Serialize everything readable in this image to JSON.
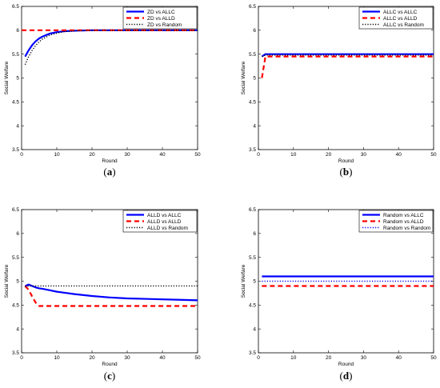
{
  "chart_data": [
    {
      "type": "line",
      "caption": "(a)",
      "xlabel": "Round",
      "ylabel": "Social Welfare",
      "xlim": [
        0,
        50
      ],
      "ylim": [
        3.5,
        6.5
      ],
      "xticks": [
        "0",
        "10",
        "20",
        "30",
        "40",
        "50"
      ],
      "yticks": [
        "3.5",
        "4",
        "4.5",
        "5",
        "5.5",
        "6",
        "6.5"
      ],
      "legend_position": "top-right",
      "series": [
        {
          "name": "ZD vs ALLC",
          "style": "solid",
          "color": "#0000ff",
          "x": [
            1,
            2,
            3,
            4,
            5,
            6,
            7,
            8,
            10,
            12,
            15,
            20,
            25,
            30,
            40,
            50
          ],
          "y": [
            5.45,
            5.58,
            5.69,
            5.77,
            5.83,
            5.87,
            5.9,
            5.93,
            5.96,
            5.98,
            5.99,
            6.0,
            6.0,
            6.0,
            6.0,
            6.0
          ]
        },
        {
          "name": "ZD vs ALLD",
          "style": "dashed",
          "color": "#ff0000",
          "x": [
            0,
            50
          ],
          "y": [
            6.0,
            6.0
          ]
        },
        {
          "name": "ZD vs Random",
          "style": "dotted",
          "color": "#000000",
          "x": [
            1,
            2,
            3,
            4,
            5,
            6,
            7,
            8,
            10,
            12,
            15,
            20,
            25,
            30,
            40,
            50
          ],
          "y": [
            5.28,
            5.45,
            5.58,
            5.68,
            5.76,
            5.82,
            5.86,
            5.9,
            5.94,
            5.97,
            5.99,
            6.0,
            6.0,
            6.0,
            6.0,
            6.0
          ]
        }
      ]
    },
    {
      "type": "line",
      "caption": "(b)",
      "xlabel": "Round",
      "ylabel": "Social Welfare",
      "xlim": [
        0,
        50
      ],
      "ylim": [
        3.5,
        6.5
      ],
      "xticks": [
        "0",
        "10",
        "20",
        "30",
        "40",
        "50"
      ],
      "yticks": [
        "3.5",
        "4",
        "4.5",
        "5",
        "5.5",
        "6",
        "6.5"
      ],
      "legend_position": "top-right",
      "series": [
        {
          "name": "ALLC vs ALLC",
          "style": "solid",
          "color": "#0000ff",
          "x": [
            1,
            2,
            3,
            50
          ],
          "y": [
            5.45,
            5.5,
            5.5,
            5.5
          ]
        },
        {
          "name": "ALLC vs ALLD",
          "style": "dashed",
          "color": "#ff0000",
          "x": [
            1,
            2,
            50
          ],
          "y": [
            5.0,
            5.45,
            5.45
          ]
        },
        {
          "name": "ALLC vs Random",
          "style": "dotted",
          "color": "#000000",
          "x": [
            1,
            2,
            50
          ],
          "y": [
            5.45,
            5.48,
            5.48
          ]
        }
      ]
    },
    {
      "type": "line",
      "caption": "(c)",
      "xlabel": "Round",
      "ylabel": "Social Welfare",
      "xlim": [
        0,
        50
      ],
      "ylim": [
        3.5,
        6.5
      ],
      "xticks": [
        "0",
        "10",
        "20",
        "30",
        "40",
        "50"
      ],
      "yticks": [
        "3.5",
        "4",
        "4.5",
        "5",
        "5.5",
        "6",
        "6.5"
      ],
      "legend_position": "top-right",
      "series": [
        {
          "name": "ALLD vs ALLC",
          "style": "solid",
          "color": "#0000ff",
          "x": [
            1,
            2,
            3,
            4,
            5,
            6,
            8,
            10,
            12,
            15,
            20,
            25,
            30,
            35,
            40,
            45,
            50
          ],
          "y": [
            4.9,
            4.93,
            4.9,
            4.87,
            4.85,
            4.84,
            4.81,
            4.78,
            4.76,
            4.73,
            4.69,
            4.66,
            4.64,
            4.63,
            4.62,
            4.61,
            4.6
          ]
        },
        {
          "name": "ALLD vs ALLD",
          "style": "dashed",
          "color": "#ff0000",
          "x": [
            1,
            2,
            3,
            4,
            5,
            50
          ],
          "y": [
            4.9,
            4.82,
            4.68,
            4.55,
            4.48,
            4.48
          ]
        },
        {
          "name": "ALLD vs Random",
          "style": "dotted",
          "color": "#000000",
          "x": [
            1,
            2,
            3,
            50
          ],
          "y": [
            4.88,
            4.9,
            4.9,
            4.9
          ]
        }
      ]
    },
    {
      "type": "line",
      "caption": "(d)",
      "xlabel": "Round",
      "ylabel": "Social Welfare",
      "xlim": [
        0,
        50
      ],
      "ylim": [
        3.5,
        6.5
      ],
      "xticks": [
        "0",
        "10",
        "20",
        "30",
        "40",
        "50"
      ],
      "yticks": [
        "3.5",
        "4",
        "4.5",
        "5",
        "5.5",
        "6",
        "6.5"
      ],
      "legend_position": "top-right",
      "series": [
        {
          "name": "Random vs ALLC",
          "style": "solid",
          "color": "#0000ff",
          "x": [
            1,
            50
          ],
          "y": [
            5.1,
            5.1
          ]
        },
        {
          "name": "Random vs ALLD",
          "style": "dashed",
          "color": "#ff0000",
          "x": [
            1,
            50
          ],
          "y": [
            4.9,
            4.9
          ]
        },
        {
          "name": "Random vs Random",
          "style": "dotted",
          "color": "#0000ff",
          "x": [
            1,
            50
          ],
          "y": [
            5.0,
            5.0
          ]
        }
      ]
    }
  ]
}
